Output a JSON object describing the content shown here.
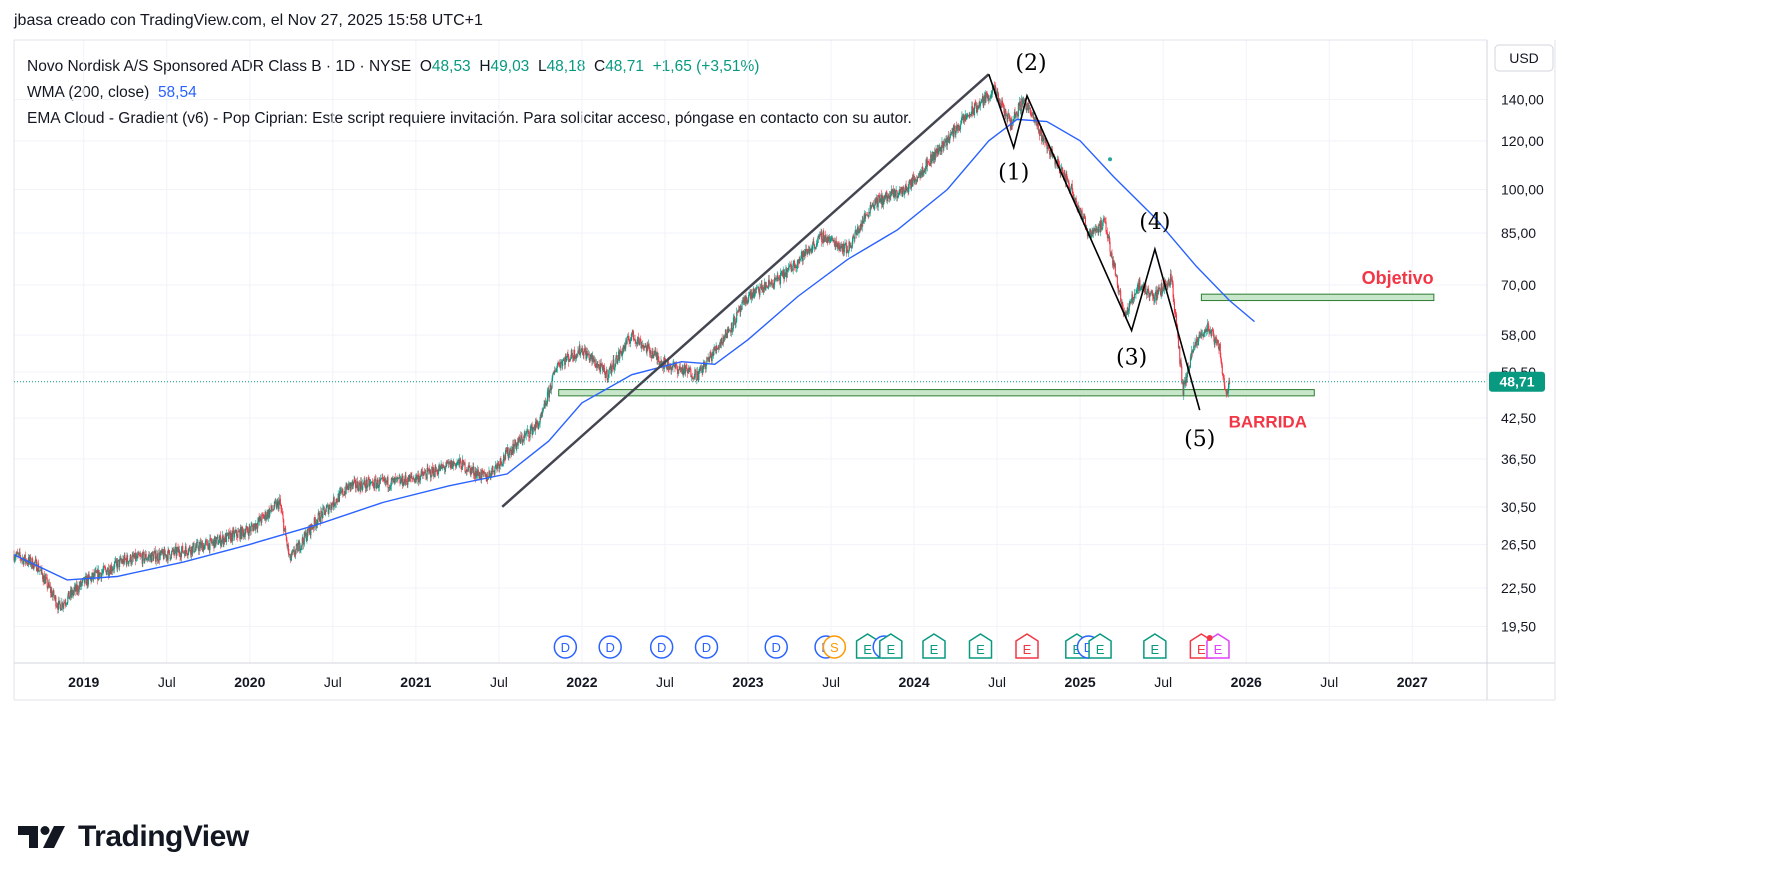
{
  "header": {
    "credit": "jbasa creado con TradingView.com, el Nov 27, 2025 15:58 UTC+1"
  },
  "legend": {
    "symbol": "Novo Nordisk A/S Sponsored ADR Class B · 1D · NYSE",
    "o_label": "O",
    "o_value": "48,53",
    "h_label": "H",
    "h_value": "49,03",
    "l_label": "L",
    "l_value": "48,18",
    "c_label": "C",
    "c_value": "48,71",
    "change": "+1,65 (+3,51%)",
    "wma_label": "WMA (200, close)",
    "wma_value": "58,54",
    "ema_cloud": "EMA Cloud - Gradient (v6) - Pop Ciprian: Este script requiere invitación. Para solicitar acceso, póngase en contacto con su autor."
  },
  "brand": {
    "logo_text": "TradingView"
  },
  "colors": {
    "up": "#089981",
    "down": "#f23645",
    "wma": "#2962ff",
    "zone_fill": "#c8e6c9",
    "zone_border": "#2e7d32",
    "annotation_red": "#f23645",
    "price_tag": "#089981"
  },
  "chart_data": {
    "type": "candlestick",
    "title": "Novo Nordisk A/S Sponsored ADR Class B · 1D · NYSE",
    "currency": "USD",
    "y_scale": "log",
    "ylim": [
      17,
      175
    ],
    "xlim": [
      2018.58,
      2027.45
    ],
    "y_ticks": [
      {
        "value": 140,
        "label": "140,00"
      },
      {
        "value": 120,
        "label": "120,00"
      },
      {
        "value": 100,
        "label": "100,00"
      },
      {
        "value": 85,
        "label": "85,00"
      },
      {
        "value": 70,
        "label": "70,00"
      },
      {
        "value": 58,
        "label": "58,00"
      },
      {
        "value": 50.5,
        "label": "50,50"
      },
      {
        "value": 42.5,
        "label": "42,50"
      },
      {
        "value": 36.5,
        "label": "36,50"
      },
      {
        "value": 30.5,
        "label": "30,50"
      },
      {
        "value": 26.5,
        "label": "26,50"
      },
      {
        "value": 22.5,
        "label": "22,50"
      },
      {
        "value": 19.5,
        "label": "19,50"
      }
    ],
    "x_ticks": [
      {
        "t": 2019.0,
        "label": "2019",
        "major": true
      },
      {
        "t": 2019.5,
        "label": "Jul",
        "major": false
      },
      {
        "t": 2020.0,
        "label": "2020",
        "major": true
      },
      {
        "t": 2020.5,
        "label": "Jul",
        "major": false
      },
      {
        "t": 2021.0,
        "label": "2021",
        "major": true
      },
      {
        "t": 2021.5,
        "label": "Jul",
        "major": false
      },
      {
        "t": 2022.0,
        "label": "2022",
        "major": true
      },
      {
        "t": 2022.5,
        "label": "Jul",
        "major": false
      },
      {
        "t": 2023.0,
        "label": "2023",
        "major": true
      },
      {
        "t": 2023.5,
        "label": "Jul",
        "major": false
      },
      {
        "t": 2024.0,
        "label": "2024",
        "major": true
      },
      {
        "t": 2024.5,
        "label": "Jul",
        "major": false
      },
      {
        "t": 2025.0,
        "label": "2025",
        "major": true
      },
      {
        "t": 2025.5,
        "label": "Jul",
        "major": false
      },
      {
        "t": 2026.0,
        "label": "2026",
        "major": true
      },
      {
        "t": 2026.5,
        "label": "Jul",
        "major": false
      },
      {
        "t": 2027.0,
        "label": "2027",
        "major": true
      }
    ],
    "price_path": [
      [
        2018.58,
        25.5
      ],
      [
        2018.72,
        24.5
      ],
      [
        2018.85,
        21.0
      ],
      [
        2019.0,
        23.0
      ],
      [
        2019.25,
        25.0
      ],
      [
        2019.5,
        25.5
      ],
      [
        2019.75,
        26.5
      ],
      [
        2020.0,
        28.0
      ],
      [
        2020.18,
        31.0
      ],
      [
        2020.24,
        25.0
      ],
      [
        2020.4,
        29.0
      ],
      [
        2020.6,
        33.0
      ],
      [
        2020.9,
        33.5
      ],
      [
        2021.0,
        34.0
      ],
      [
        2021.25,
        36.0
      ],
      [
        2021.42,
        34.0
      ],
      [
        2021.58,
        38.0
      ],
      [
        2021.75,
        42.0
      ],
      [
        2021.85,
        52.0
      ],
      [
        2022.0,
        55.0
      ],
      [
        2022.15,
        50.0
      ],
      [
        2022.3,
        58.0
      ],
      [
        2022.5,
        52.0
      ],
      [
        2022.7,
        50.0
      ],
      [
        2022.9,
        60.0
      ],
      [
        2023.0,
        67.0
      ],
      [
        2023.2,
        72.0
      ],
      [
        2023.45,
        84.0
      ],
      [
        2023.6,
        80.0
      ],
      [
        2023.75,
        95.0
      ],
      [
        2023.95,
        100.0
      ],
      [
        2024.1,
        112.0
      ],
      [
        2024.3,
        130.0
      ],
      [
        2024.48,
        145.0
      ],
      [
        2024.58,
        128.0
      ],
      [
        2024.66,
        140.0
      ],
      [
        2024.8,
        118.0
      ],
      [
        2024.95,
        100.0
      ],
      [
        2025.05,
        85.0
      ],
      [
        2025.15,
        88.0
      ],
      [
        2025.27,
        62.0
      ],
      [
        2025.35,
        70.0
      ],
      [
        2025.45,
        67.0
      ],
      [
        2025.55,
        72.0
      ],
      [
        2025.62,
        47.0
      ],
      [
        2025.68,
        55.0
      ],
      [
        2025.76,
        60.0
      ],
      [
        2025.84,
        55.0
      ],
      [
        2025.88,
        46.0
      ],
      [
        2025.9,
        48.71
      ]
    ],
    "wma_200": {
      "name": "WMA (200, close)",
      "last": 58.54,
      "points": [
        [
          2018.58,
          25.5
        ],
        [
          2018.9,
          23.2
        ],
        [
          2019.2,
          23.5
        ],
        [
          2019.6,
          24.8
        ],
        [
          2020.0,
          26.5
        ],
        [
          2020.4,
          28.5
        ],
        [
          2020.8,
          31.0
        ],
        [
          2021.2,
          33.0
        ],
        [
          2021.55,
          34.5
        ],
        [
          2021.8,
          39.0
        ],
        [
          2022.0,
          45.0
        ],
        [
          2022.3,
          50.0
        ],
        [
          2022.6,
          52.5
        ],
        [
          2022.8,
          52.0
        ],
        [
          2023.0,
          57.0
        ],
        [
          2023.3,
          67.0
        ],
        [
          2023.6,
          77.0
        ],
        [
          2023.9,
          86.0
        ],
        [
          2024.2,
          100.0
        ],
        [
          2024.45,
          120.0
        ],
        [
          2024.62,
          130.0
        ],
        [
          2024.8,
          129.0
        ],
        [
          2025.0,
          120.0
        ],
        [
          2025.2,
          105.0
        ],
        [
          2025.45,
          90.0
        ],
        [
          2025.7,
          75.0
        ],
        [
          2025.9,
          66.0
        ],
        [
          2026.05,
          61.0
        ]
      ]
    },
    "trendline": {
      "from": [
        2021.52,
        30.5
      ],
      "to": [
        2024.45,
        154.0
      ]
    },
    "wave_count": {
      "points": [
        {
          "t": 2024.45,
          "v": 154.0,
          "label": ""
        },
        {
          "t": 2024.6,
          "v": 117.0,
          "label": "(1)"
        },
        {
          "t": 2024.68,
          "v": 142.0,
          "label": "(2)"
        },
        {
          "t": 2025.31,
          "v": 59.0,
          "label": "(3)"
        },
        {
          "t": 2025.45,
          "v": 80.0,
          "label": "(4)"
        },
        {
          "t": 2025.72,
          "v": 43.8,
          "label": "(5)"
        }
      ]
    },
    "zones": [
      {
        "name": "support",
        "from_t": 2021.86,
        "to_t": 2026.41,
        "top": 47.3,
        "bottom": 46.2
      },
      {
        "name": "objective",
        "from_t": 2025.73,
        "to_t": 2027.13,
        "top": 67.6,
        "bottom": 66.0,
        "label": "Objetivo"
      }
    ],
    "annotations": [
      {
        "text": "BARRIDA",
        "t": 2026.13,
        "v": 42.0
      }
    ],
    "last_price": {
      "value": 48.71,
      "label": "48,71"
    },
    "events": [
      {
        "t": 2021.9,
        "type": "D"
      },
      {
        "t": 2022.17,
        "type": "D"
      },
      {
        "t": 2022.48,
        "type": "D"
      },
      {
        "t": 2022.75,
        "type": "D"
      },
      {
        "t": 2023.17,
        "type": "D"
      },
      {
        "t": 2023.47,
        "type": "D"
      },
      {
        "t": 2023.52,
        "type": "S"
      },
      {
        "t": 2023.72,
        "type": "E"
      },
      {
        "t": 2023.82,
        "type": "D"
      },
      {
        "t": 2023.86,
        "type": "E"
      },
      {
        "t": 2024.12,
        "type": "E"
      },
      {
        "t": 2024.4,
        "type": "E"
      },
      {
        "t": 2024.68,
        "type": "E"
      },
      {
        "t": 2024.98,
        "type": "E"
      },
      {
        "t": 2025.05,
        "type": "D"
      },
      {
        "t": 2025.12,
        "type": "E"
      },
      {
        "t": 2025.45,
        "type": "E"
      },
      {
        "t": 2025.73,
        "type": "E"
      },
      {
        "t": 2025.83,
        "type": "E2"
      }
    ]
  }
}
